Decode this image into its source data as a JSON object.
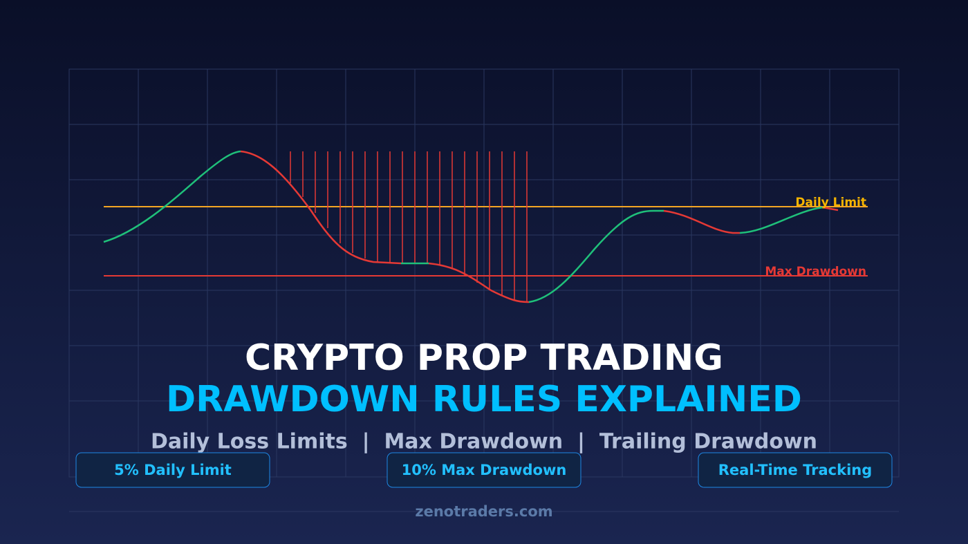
{
  "chart_labels": {
    "daily_limit": "Daily Limit",
    "max_drawdown": "Max Drawdown"
  },
  "header": {
    "title": "CRYPTO PROP TRADING",
    "subtitle": "DRAWDOWN RULES EXPLAINED",
    "tagline": "Daily Loss Limits  |  Max Drawdown  |  Trailing Drawdown"
  },
  "badges": [
    "5% Daily Limit",
    "10% Max Drawdown",
    "Real-Time Tracking"
  ],
  "footer": {
    "site": "zenotraders.com"
  }
}
